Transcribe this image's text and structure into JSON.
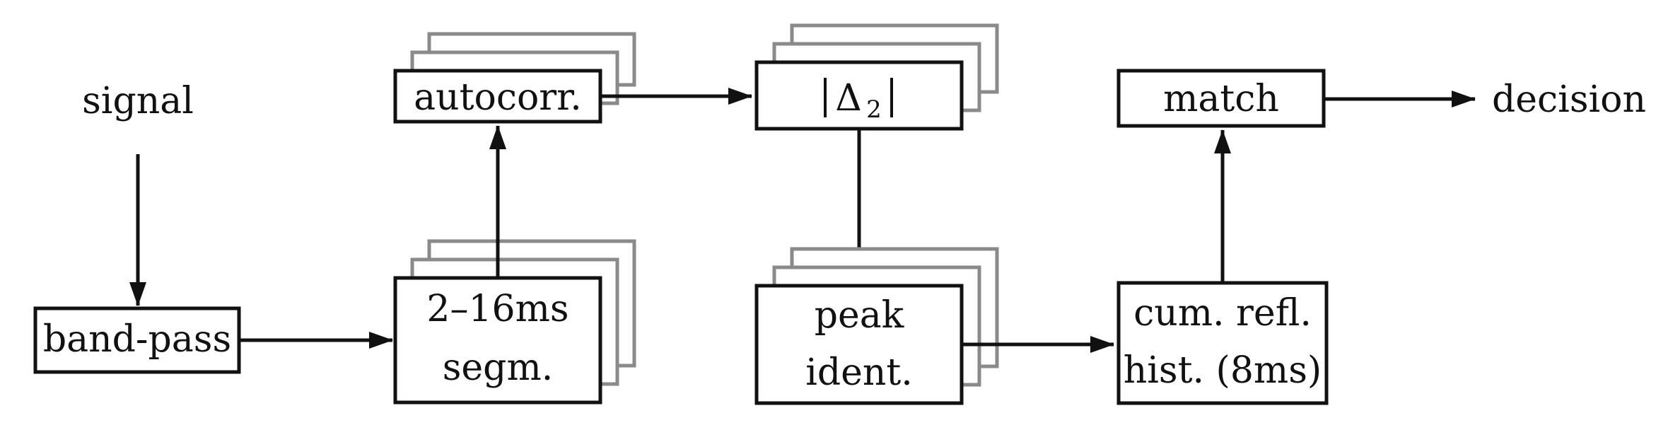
{
  "nodes": {
    "signal": "signal",
    "bandpass": "band-pass",
    "segm_line1": "2–16ms",
    "segm_line2": "segm.",
    "autocorr": "autocorr.",
    "delta_symbol": "Δ",
    "delta_sub": "2",
    "peak_line1": "peak",
    "peak_line2": "ident.",
    "hist_line1": "cum. refl.",
    "hist_line2": "hist. (8ms)",
    "match": "match",
    "decision": "decision"
  },
  "colors": {
    "stroke": "#111111",
    "stack_shadow": "#8a8a8a",
    "background": "#ffffff"
  }
}
